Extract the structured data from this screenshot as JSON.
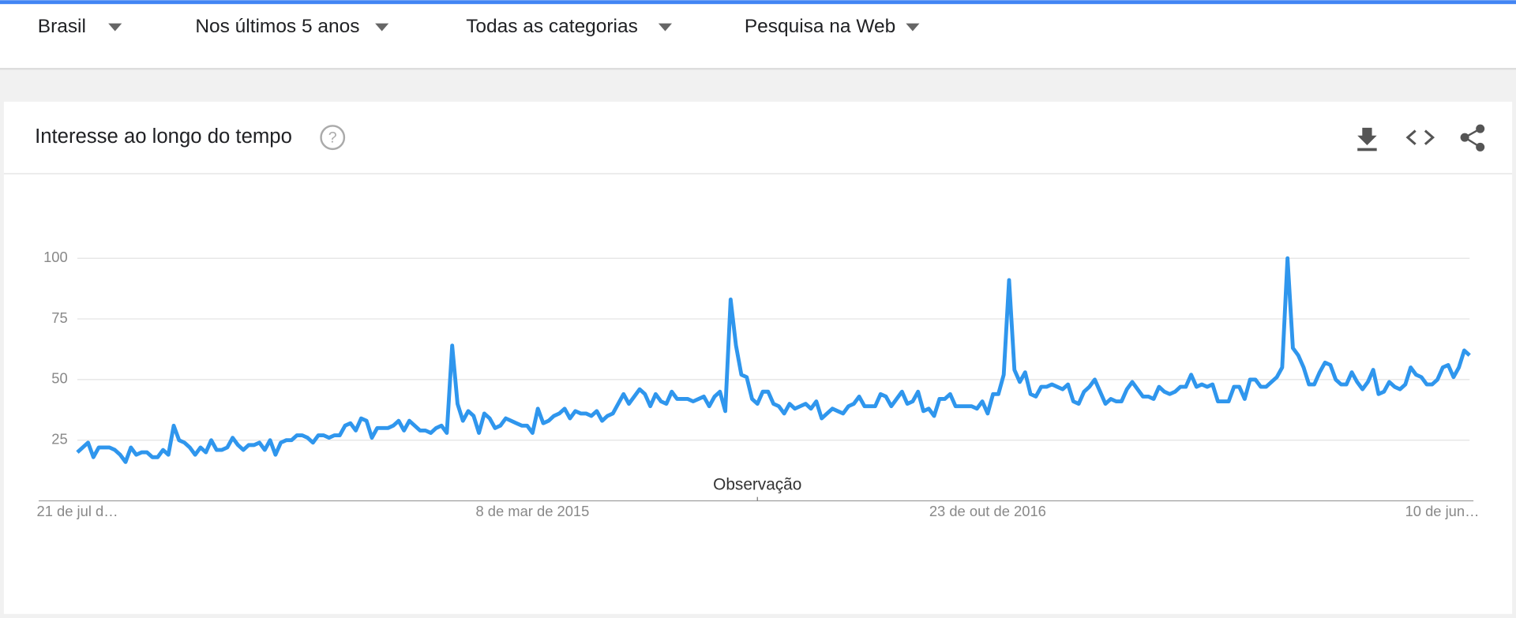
{
  "header": {
    "filters": [
      "Brasil",
      "Nos últimos 5 anos",
      "Todas as categorias",
      "Pesquisa na Web"
    ]
  },
  "card": {
    "title": "Interesse ao longo do tempo"
  },
  "chart_data": {
    "type": "line",
    "color": "#2f96ed",
    "grid": true,
    "xlim": [
      0,
      260
    ],
    "xticks": [
      {
        "value": 0,
        "label": "21 de jul d…"
      },
      {
        "value": 85,
        "label": "8 de mar de 2015"
      },
      {
        "value": 170,
        "label": "23 de out de 2016"
      },
      {
        "value": 260,
        "label": "10 de jun…"
      }
    ],
    "ylim": [
      0,
      100
    ],
    "yticks": [
      25,
      50,
      75,
      100
    ],
    "annotation": {
      "x": 127,
      "text": "Observação"
    },
    "values": [
      20,
      22,
      24,
      18,
      22,
      22,
      22,
      21,
      19,
      16,
      22,
      19,
      20,
      20,
      18,
      18,
      21,
      19,
      31,
      25,
      24,
      22,
      19,
      22,
      20,
      25,
      21,
      21,
      22,
      26,
      23,
      21,
      23,
      23,
      24,
      21,
      25,
      19,
      24,
      25,
      25,
      27,
      27,
      26,
      24,
      27,
      27,
      26,
      27,
      27,
      31,
      32,
      29,
      34,
      33,
      26,
      30,
      30,
      30,
      31,
      33,
      29,
      33,
      31,
      29,
      29,
      28,
      30,
      31,
      28,
      64,
      40,
      33,
      37,
      35,
      28,
      36,
      34,
      30,
      31,
      34,
      33,
      32,
      31,
      31,
      28,
      38,
      32,
      33,
      35,
      36,
      38,
      34,
      37,
      36,
      36,
      35,
      37,
      33,
      35,
      36,
      40,
      44,
      40,
      43,
      46,
      44,
      39,
      44,
      41,
      40,
      45,
      42,
      42,
      42,
      41,
      42,
      43,
      39,
      43,
      45,
      37,
      83,
      64,
      52,
      51,
      42,
      40,
      45,
      45,
      40,
      39,
      36,
      40,
      38,
      39,
      40,
      38,
      41,
      34,
      36,
      38,
      37,
      36,
      39,
      40,
      43,
      39,
      39,
      39,
      44,
      43,
      39,
      42,
      45,
      40,
      41,
      45,
      37,
      38,
      35,
      42,
      42,
      44,
      39,
      39,
      39,
      39,
      38,
      41,
      36,
      44,
      44,
      52,
      91,
      54,
      49,
      53,
      44,
      43,
      47,
      47,
      48,
      47,
      46,
      48,
      41,
      40,
      45,
      47,
      50,
      45,
      40,
      42,
      41,
      41,
      46,
      49,
      46,
      43,
      43,
      42,
      47,
      45,
      44,
      45,
      47,
      47,
      52,
      47,
      48,
      47,
      48,
      41,
      41,
      41,
      47,
      47,
      42,
      50,
      50,
      47,
      47,
      49,
      51,
      55,
      100,
      63,
      60,
      55,
      48,
      48,
      53,
      57,
      56,
      50,
      48,
      48,
      53,
      49,
      46,
      49,
      54,
      44,
      45,
      49,
      47,
      46,
      48,
      55,
      52,
      51,
      48,
      48,
      50,
      55,
      56,
      51,
      55,
      62,
      60
    ]
  }
}
